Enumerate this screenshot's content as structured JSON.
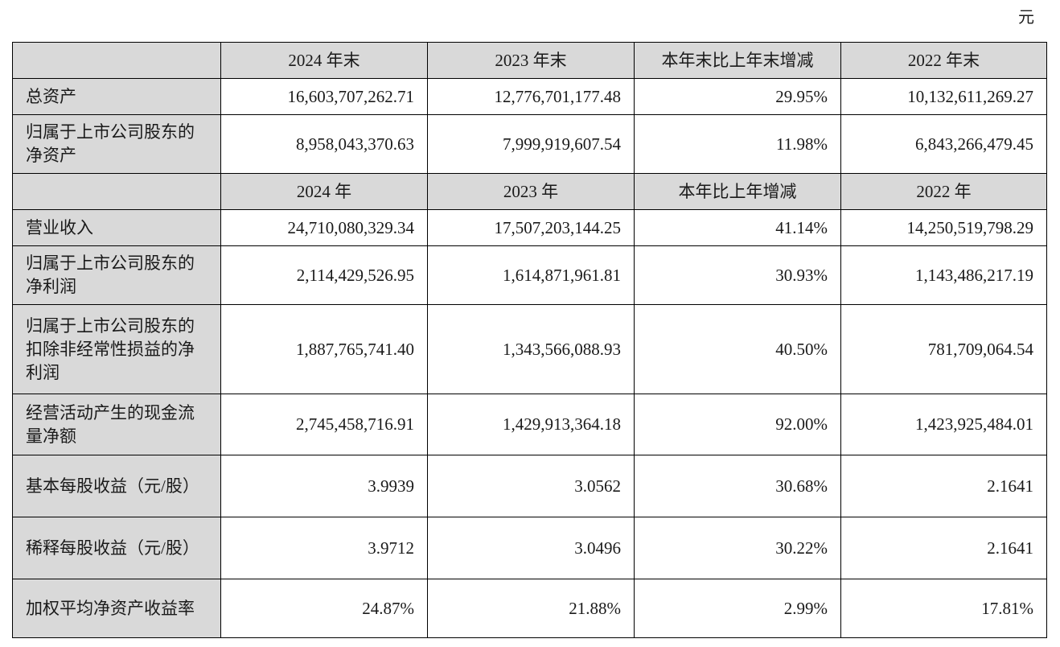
{
  "unit": "元",
  "headers_balance": [
    "2024 年末",
    "2023 年末",
    "本年末比上年末增减",
    "2022 年末"
  ],
  "headers_income": [
    "2024 年",
    "2023 年",
    "本年比上年增减",
    "2022 年"
  ],
  "rows": [
    {
      "label": "总资产",
      "values": [
        "16,603,707,262.71",
        "12,776,701,177.48",
        "29.95%",
        "10,132,611,269.27"
      ]
    },
    {
      "label": "归属于上市公司股东的净资产",
      "values": [
        "8,958,043,370.63",
        "7,999,919,607.54",
        "11.98%",
        "6,843,266,479.45"
      ]
    },
    {
      "label": "营业收入",
      "values": [
        "24,710,080,329.34",
        "17,507,203,144.25",
        "41.14%",
        "14,250,519,798.29"
      ]
    },
    {
      "label": "归属于上市公司股东的净利润",
      "values": [
        "2,114,429,526.95",
        "1,614,871,961.81",
        "30.93%",
        "1,143,486,217.19"
      ]
    },
    {
      "label": "归属于上市公司股东的扣除非经常性损益的净利润",
      "values": [
        "1,887,765,741.40",
        "1,343,566,088.93",
        "40.50%",
        "781,709,064.54"
      ]
    },
    {
      "label": "经营活动产生的现金流量净额",
      "values": [
        "2,745,458,716.91",
        "1,429,913,364.18",
        "92.00%",
        "1,423,925,484.01"
      ]
    },
    {
      "label": "基本每股收益（元/股）",
      "values": [
        "3.9939",
        "3.0562",
        "30.68%",
        "2.1641"
      ]
    },
    {
      "label": "稀释每股收益（元/股）",
      "values": [
        "3.9712",
        "3.0496",
        "30.22%",
        "2.1641"
      ]
    },
    {
      "label": "加权平均净资产收益率",
      "values": [
        "24.87%",
        "21.88%",
        "2.99%",
        "17.81%"
      ]
    }
  ]
}
